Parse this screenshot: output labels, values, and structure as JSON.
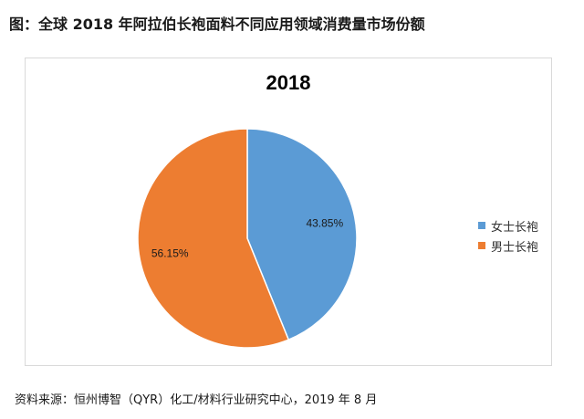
{
  "figure_title": "图：全球 2018 年阿拉伯长袍面料不同应用领域消费量市场份额",
  "source": "资料来源：恒州博智（QYR）化工/材料行业研究中心，2019 年 8 月",
  "chart_data": {
    "type": "pie",
    "title": "2018",
    "categories": [
      "女士长袍",
      "男士长袍"
    ],
    "values": [
      43.85,
      56.15
    ],
    "data_labels": [
      "43.85%",
      "56.15%"
    ],
    "colors": [
      "#5b9bd5",
      "#ed7d31"
    ],
    "legend_position": "right"
  }
}
